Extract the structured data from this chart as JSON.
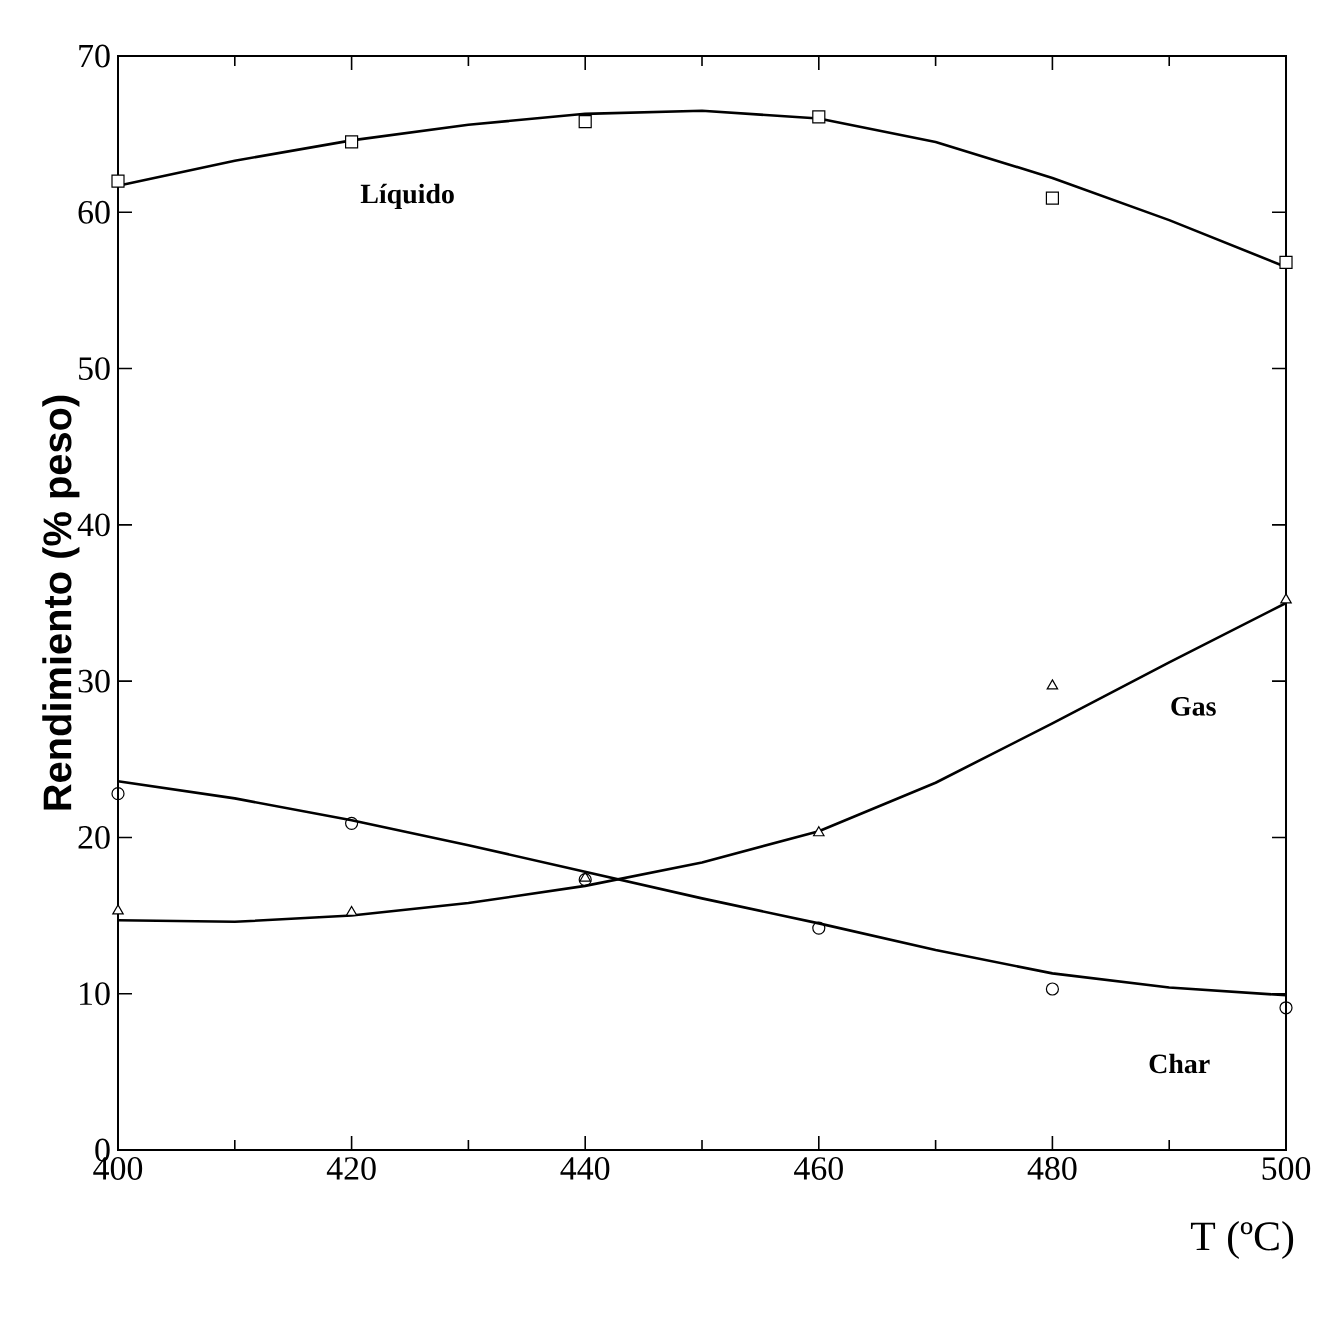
{
  "chart_data": {
    "type": "line",
    "xlabel": "T (ºC)",
    "ylabel": "Rendimiento (% peso)",
    "xlim": [
      400,
      500
    ],
    "xticks": [
      400,
      420,
      440,
      460,
      480,
      500
    ],
    "ylim": [
      0,
      70
    ],
    "yticks": [
      0,
      10,
      20,
      30,
      40,
      50,
      60,
      70
    ],
    "grid": false,
    "line_style": "solid",
    "series": [
      {
        "type": "scatter",
        "marker": "square",
        "color": "#000000",
        "x": [
          400,
          420,
          440,
          460,
          480,
          500
        ],
        "values": [
          62.0,
          64.5,
          65.8,
          66.1,
          60.9,
          56.8
        ]
      },
      {
        "name": "**Líquido**",
        "marker": "none",
        "color": "#000000",
        "x": [
          400,
          410,
          420,
          430,
          440,
          450,
          460,
          470,
          480,
          490,
          500
        ],
        "values": [
          61.7,
          63.3,
          64.6,
          65.6,
          66.3,
          66.5,
          66.0,
          64.5,
          62.2,
          59.5,
          56.5
        ]
      },
      {
        "type": "scatter",
        "marker": "triangle",
        "color": "#000000",
        "x": [
          400,
          420,
          440,
          460,
          480,
          500
        ],
        "values": [
          15.3,
          15.2,
          17.4,
          20.3,
          29.7,
          35.2
        ]
      },
      {
        "name": "**Gas**",
        "marker": "none",
        "color": "#000000",
        "x": [
          400,
          410,
          420,
          430,
          440,
          450,
          460,
          470,
          480,
          490,
          500
        ],
        "values": [
          14.7,
          14.6,
          15.0,
          15.8,
          16.9,
          18.4,
          20.4,
          23.5,
          27.3,
          31.2,
          35.0
        ]
      },
      {
        "type": "scatter",
        "marker": "circle",
        "color": "#000000",
        "x": [
          400,
          420,
          440,
          460,
          480,
          500
        ],
        "values": [
          22.8,
          20.9,
          17.3,
          14.2,
          10.3,
          9.1
        ]
      },
      {
        "name": "**Char**",
        "marker": "none",
        "color": "#000000",
        "x": [
          400,
          410,
          420,
          430,
          440,
          450,
          460,
          470,
          480,
          490,
          500
        ],
        "values": [
          23.6,
          22.5,
          21.1,
          19.5,
          17.8,
          16.1,
          14.5,
          12.8,
          11.3,
          10.4,
          9.9
        ]
      }
    ]
  }
}
